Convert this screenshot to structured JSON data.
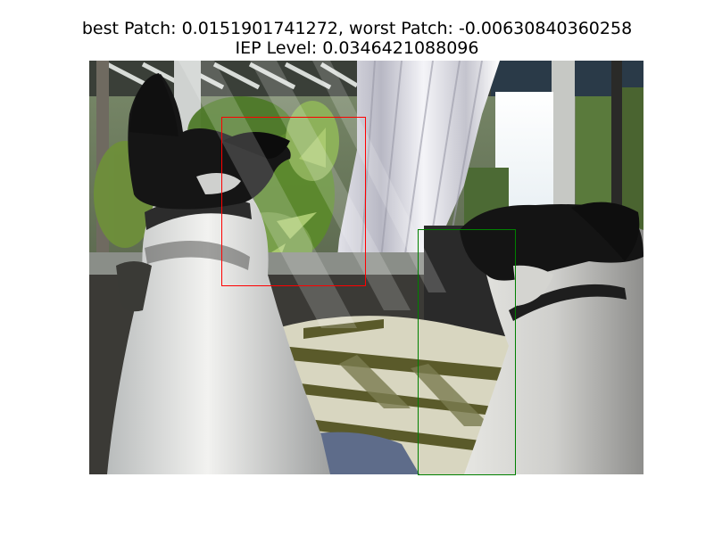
{
  "figure": {
    "title_line_1": "best Patch: 0.0151901741272, worst Patch: -0.00630840360258",
    "title_line_2": "IEP Level: 0.0346421088096"
  },
  "image": {
    "subject": "photo of two black-and-white dogs looking out a sunlit window with a white curtain and plants",
    "icon": "photo-image"
  },
  "patches": {
    "best": {
      "color": "#ff0000"
    },
    "worst": {
      "color": "#008000"
    }
  }
}
